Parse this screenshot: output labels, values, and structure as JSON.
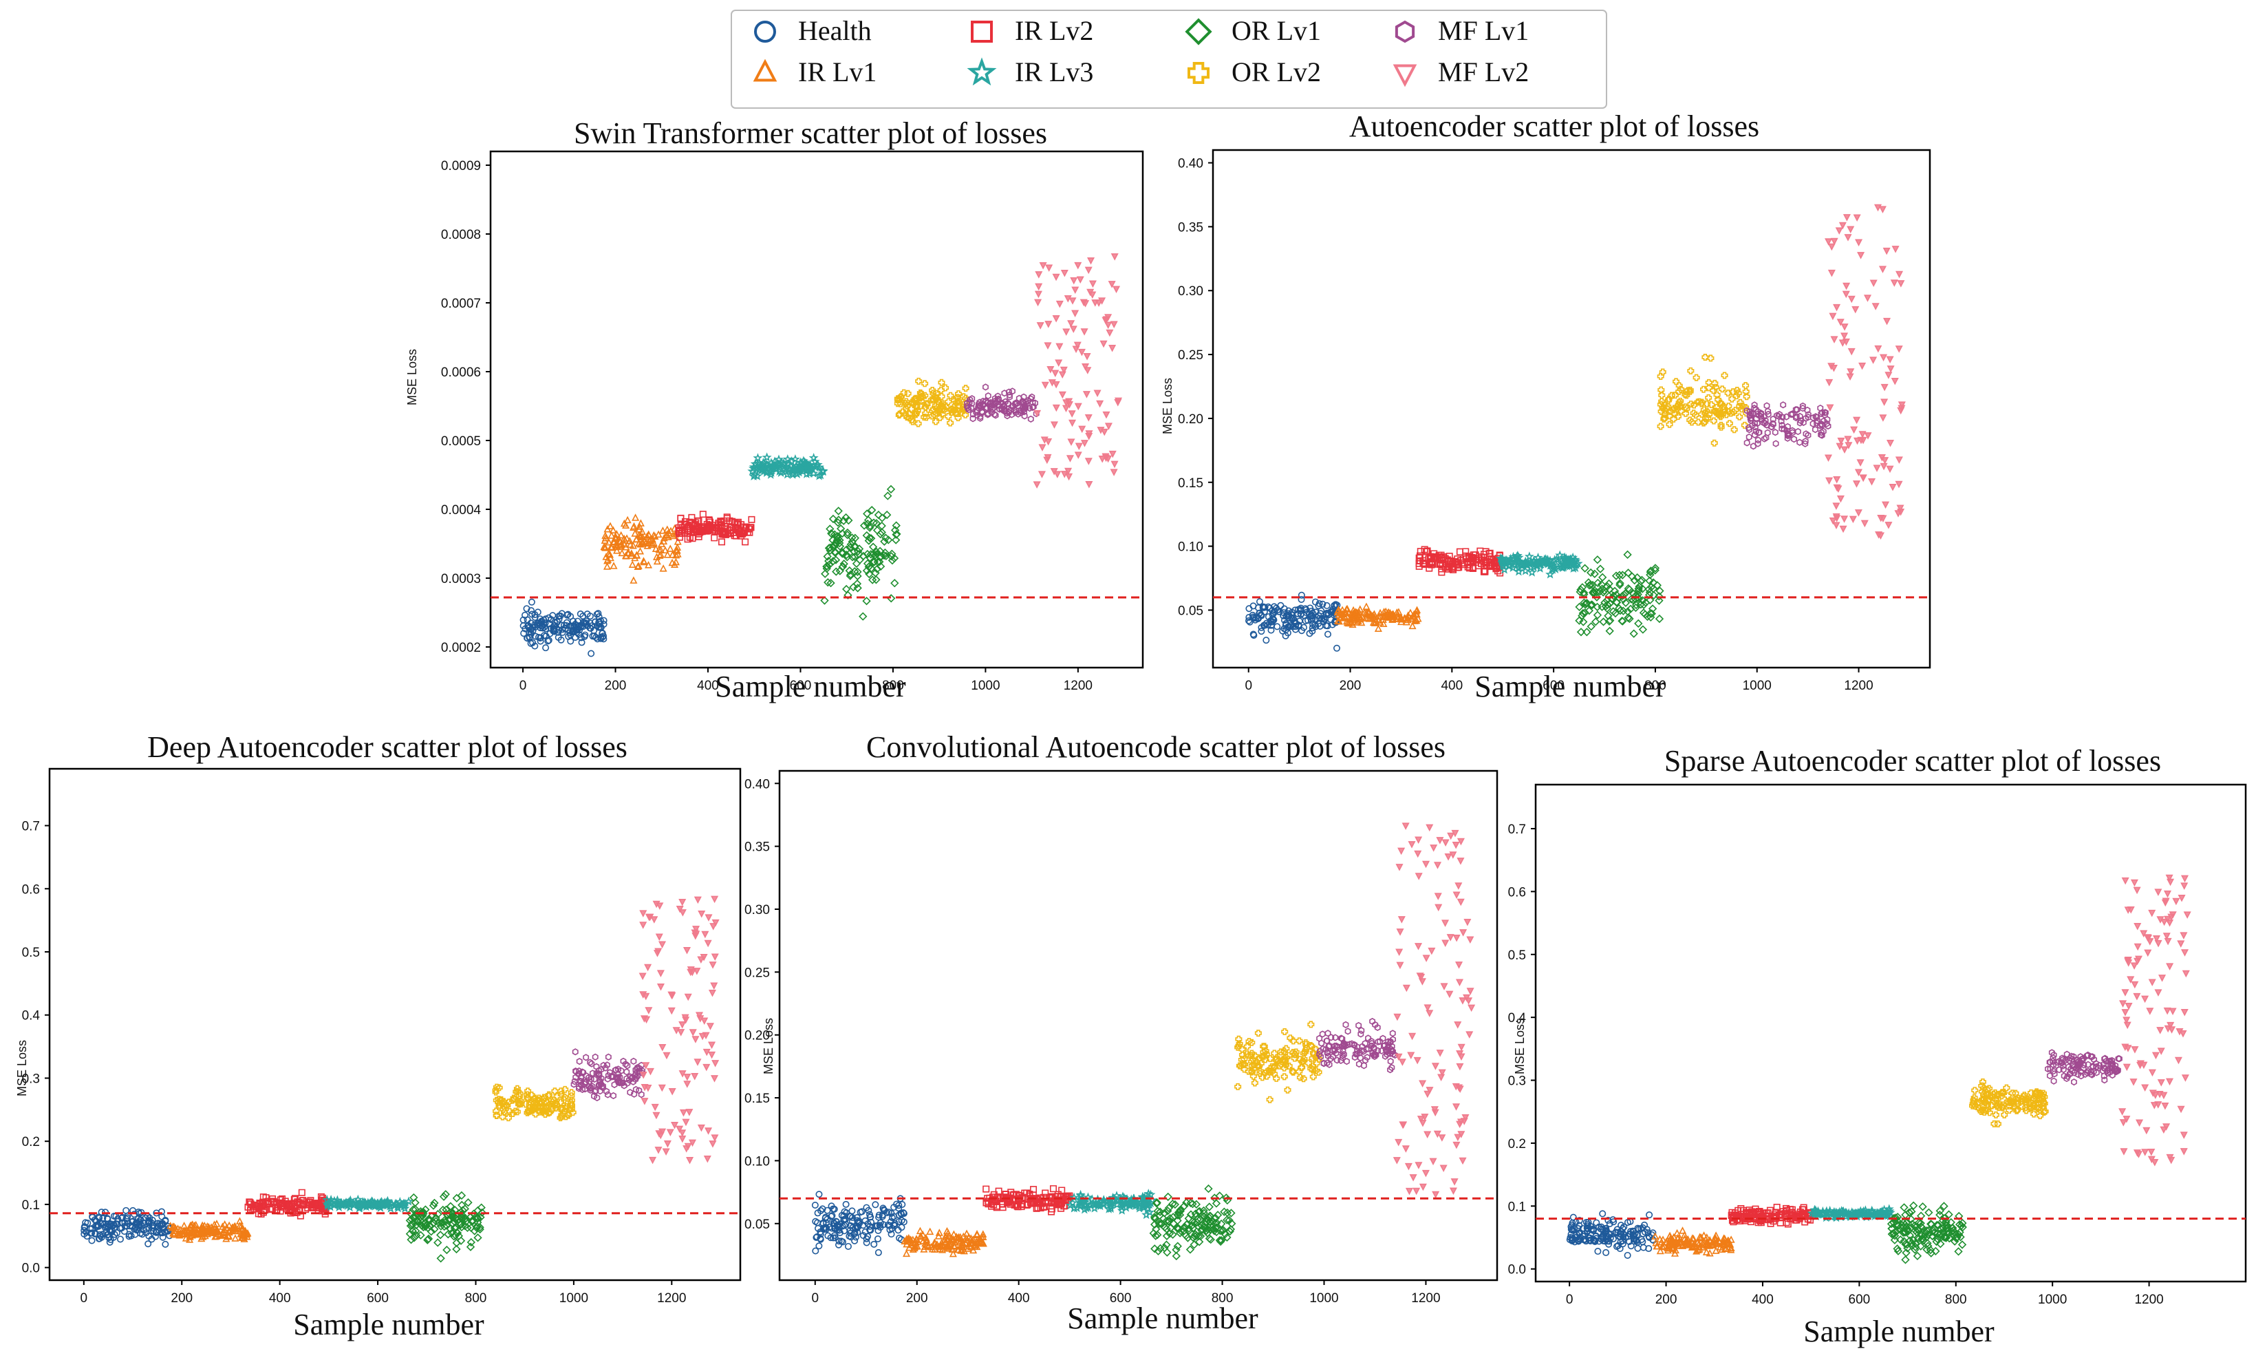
{
  "legend": [
    {
      "key": "health",
      "label": "Health",
      "marker": "circle",
      "color": "#1f5a9a"
    },
    {
      "key": "ir1",
      "label": "IR Lv1",
      "marker": "triangle-up",
      "color": "#f07d16"
    },
    {
      "key": "ir2",
      "label": "IR Lv2",
      "marker": "square",
      "color": "#e8303a"
    },
    {
      "key": "ir3",
      "label": "IR Lv3",
      "marker": "star",
      "color": "#2aa6a1"
    },
    {
      "key": "or1",
      "label": "OR Lv1",
      "marker": "diamond",
      "color": "#1f8f2f"
    },
    {
      "key": "or2",
      "label": "OR Lv2",
      "marker": "plus",
      "color": "#f0b814"
    },
    {
      "key": "mf1",
      "label": "MF Lv1",
      "marker": "hexagon",
      "color": "#a04a90"
    },
    {
      "key": "mf2",
      "label": "MF Lv2",
      "marker": "triangle-down",
      "color": "#f07a8c"
    }
  ],
  "threshold_color": "#e0201e",
  "chart_data": [
    {
      "type": "scatter",
      "title": "Swin Transformer scatter plot of losses",
      "xlabel": "Sample number",
      "ylabel": "MSE Loss",
      "xlim": [
        -70,
        1340
      ],
      "ylim": [
        0.00017,
        0.00092
      ],
      "xticks": [
        0,
        200,
        400,
        600,
        800,
        1000,
        1200
      ],
      "yticks": [
        0.0002,
        0.0003,
        0.0004,
        0.0005,
        0.0006,
        0.0007,
        0.0008,
        0.0009
      ],
      "ytick_labels": [
        "0.0002",
        "0.0003",
        "0.0004",
        "0.0005",
        "0.0006",
        "0.0007",
        "0.0008",
        "0.0009"
      ],
      "threshold": 0.000272,
      "series": [
        {
          "key": "health",
          "x_range": [
            0,
            175
          ],
          "y_center": 0.000229,
          "y_spread": 1.1e-05,
          "count": 170
        },
        {
          "key": "ir1",
          "x_range": [
            175,
            335
          ],
          "y_center": 0.00035,
          "y_spread": 1.6e-05,
          "count": 140
        },
        {
          "key": "ir2",
          "x_range": [
            335,
            495
          ],
          "y_center": 0.000372,
          "y_spread": 7e-06,
          "count": 140
        },
        {
          "key": "ir3",
          "x_range": [
            495,
            650
          ],
          "y_center": 0.00046,
          "y_spread": 6e-06,
          "count": 120
        },
        {
          "key": "or1",
          "x_range": [
            650,
            810
          ],
          "y_center": 0.00034,
          "y_spread": 3.3e-05,
          "count": 150
        },
        {
          "key": "or2",
          "x_range": [
            810,
            960
          ],
          "y_center": 0.000551,
          "y_spread": 1.2e-05,
          "count": 120
        },
        {
          "key": "mf1",
          "x_range": [
            960,
            1110
          ],
          "y_center": 0.000551,
          "y_spread": 9e-06,
          "count": 120
        },
        {
          "key": "mf2",
          "x_range": [
            1110,
            1290
          ],
          "y_center": 0.0006,
          "y_spread": 8e-05,
          "count": 110
        }
      ]
    },
    {
      "type": "scatter",
      "title": "Autoencoder scatter plot of losses",
      "xlabel": "Sample number",
      "ylabel": "MSE Loss",
      "xlim": [
        -70,
        1340
      ],
      "ylim": [
        0.005,
        0.41
      ],
      "xticks": [
        0,
        200,
        400,
        600,
        800,
        1000,
        1200
      ],
      "yticks": [
        0.05,
        0.1,
        0.15,
        0.2,
        0.25,
        0.3,
        0.35,
        0.4
      ],
      "ytick_labels": [
        "0.05",
        "0.10",
        "0.15",
        "0.20",
        "0.25",
        "0.30",
        "0.35",
        "0.40"
      ],
      "threshold": 0.06,
      "series": [
        {
          "key": "health",
          "x_range": [
            0,
            175
          ],
          "y_center": 0.045,
          "y_spread": 0.007,
          "count": 170
        },
        {
          "key": "ir1",
          "x_range": [
            175,
            335
          ],
          "y_center": 0.045,
          "y_spread": 0.003,
          "count": 140
        },
        {
          "key": "ir2",
          "x_range": [
            335,
            495
          ],
          "y_center": 0.088,
          "y_spread": 0.004,
          "count": 140
        },
        {
          "key": "ir3",
          "x_range": [
            495,
            650
          ],
          "y_center": 0.087,
          "y_spread": 0.003,
          "count": 120
        },
        {
          "key": "or1",
          "x_range": [
            650,
            810
          ],
          "y_center": 0.06,
          "y_spread": 0.013,
          "count": 150
        },
        {
          "key": "or2",
          "x_range": [
            810,
            980
          ],
          "y_center": 0.21,
          "y_spread": 0.01,
          "count": 130
        },
        {
          "key": "mf1",
          "x_range": [
            980,
            1140
          ],
          "y_center": 0.197,
          "y_spread": 0.008,
          "count": 120
        },
        {
          "key": "mf2",
          "x_range": [
            1140,
            1290
          ],
          "y_center": 0.23,
          "y_spread": 0.065,
          "count": 110
        }
      ]
    },
    {
      "type": "scatter",
      "title": "Deep Autoencoder scatter plot of losses",
      "xlabel": "Sample number",
      "ylabel": "MSE Loss",
      "xlim": [
        -70,
        1340
      ],
      "ylim": [
        -0.02,
        0.79
      ],
      "xticks": [
        0,
        200,
        400,
        600,
        800,
        1000,
        1200
      ],
      "yticks": [
        0.0,
        0.1,
        0.2,
        0.3,
        0.4,
        0.5,
        0.6,
        0.7
      ],
      "ytick_labels": [
        "0.0",
        "0.1",
        "0.2",
        "0.3",
        "0.4",
        "0.5",
        "0.6",
        "0.7"
      ],
      "threshold": 0.086,
      "series": [
        {
          "key": "health",
          "x_range": [
            0,
            175
          ],
          "y_center": 0.065,
          "y_spread": 0.012,
          "count": 170
        },
        {
          "key": "ir1",
          "x_range": [
            175,
            335
          ],
          "y_center": 0.057,
          "y_spread": 0.006,
          "count": 140
        },
        {
          "key": "ir2",
          "x_range": [
            335,
            495
          ],
          "y_center": 0.098,
          "y_spread": 0.006,
          "count": 140
        },
        {
          "key": "ir3",
          "x_range": [
            495,
            665
          ],
          "y_center": 0.1,
          "y_spread": 0.003,
          "count": 120
        },
        {
          "key": "or1",
          "x_range": [
            665,
            815
          ],
          "y_center": 0.075,
          "y_spread": 0.018,
          "count": 150
        },
        {
          "key": "or2",
          "x_range": [
            840,
            1000
          ],
          "y_center": 0.258,
          "y_spread": 0.012,
          "count": 130
        },
        {
          "key": "mf1",
          "x_range": [
            1000,
            1140
          ],
          "y_center": 0.3,
          "y_spread": 0.015,
          "count": 120
        },
        {
          "key": "mf2",
          "x_range": [
            1140,
            1290
          ],
          "y_center": 0.38,
          "y_spread": 0.1,
          "count": 110
        }
      ]
    },
    {
      "type": "scatter",
      "title": "Convolutional Autoencode scatter plot of losses",
      "xlabel": "Sample number",
      "ylabel": "MSE Loss",
      "xlim": [
        -70,
        1340
      ],
      "ylim": [
        0.005,
        0.41
      ],
      "xticks": [
        0,
        200,
        400,
        600,
        800,
        1000,
        1200
      ],
      "yticks": [
        0.05,
        0.1,
        0.15,
        0.2,
        0.25,
        0.3,
        0.35,
        0.4
      ],
      "ytick_labels": [
        "0.05",
        "0.10",
        "0.15",
        "0.20",
        "0.25",
        "0.30",
        "0.35",
        "0.40"
      ],
      "threshold": 0.07,
      "series": [
        {
          "key": "health",
          "x_range": [
            0,
            175
          ],
          "y_center": 0.05,
          "y_spread": 0.009,
          "count": 170
        },
        {
          "key": "ir1",
          "x_range": [
            175,
            335
          ],
          "y_center": 0.035,
          "y_spread": 0.004,
          "count": 140
        },
        {
          "key": "ir2",
          "x_range": [
            335,
            500
          ],
          "y_center": 0.069,
          "y_spread": 0.004,
          "count": 140
        },
        {
          "key": "ir3",
          "x_range": [
            500,
            665
          ],
          "y_center": 0.066,
          "y_spread": 0.003,
          "count": 120
        },
        {
          "key": "or1",
          "x_range": [
            665,
            820
          ],
          "y_center": 0.05,
          "y_spread": 0.011,
          "count": 150
        },
        {
          "key": "or2",
          "x_range": [
            830,
            990
          ],
          "y_center": 0.18,
          "y_spread": 0.01,
          "count": 130
        },
        {
          "key": "mf1",
          "x_range": [
            990,
            1140
          ],
          "y_center": 0.188,
          "y_spread": 0.008,
          "count": 120
        },
        {
          "key": "mf2",
          "x_range": [
            1140,
            1290
          ],
          "y_center": 0.22,
          "y_spread": 0.07,
          "count": 110
        }
      ]
    },
    {
      "type": "scatter",
      "title": "Sparse Autoencoder scatter plot of losses",
      "xlabel": "Sample number",
      "ylabel": "MSE Loss",
      "xlim": [
        -70,
        1400
      ],
      "ylim": [
        -0.02,
        0.77
      ],
      "xticks": [
        0,
        200,
        400,
        600,
        800,
        1000,
        1200
      ],
      "yticks": [
        0.0,
        0.1,
        0.2,
        0.3,
        0.4,
        0.5,
        0.6,
        0.7
      ],
      "ytick_labels": [
        "0.0",
        "0.1",
        "0.2",
        "0.3",
        "0.4",
        "0.5",
        "0.6",
        "0.7"
      ],
      "threshold": 0.08,
      "series": [
        {
          "key": "health",
          "x_range": [
            0,
            175
          ],
          "y_center": 0.055,
          "y_spread": 0.01,
          "count": 170
        },
        {
          "key": "ir1",
          "x_range": [
            175,
            335
          ],
          "y_center": 0.04,
          "y_spread": 0.006,
          "count": 140
        },
        {
          "key": "ir2",
          "x_range": [
            335,
            500
          ],
          "y_center": 0.085,
          "y_spread": 0.006,
          "count": 140
        },
        {
          "key": "ir3",
          "x_range": [
            500,
            665
          ],
          "y_center": 0.088,
          "y_spread": 0.003,
          "count": 120
        },
        {
          "key": "or1",
          "x_range": [
            665,
            815
          ],
          "y_center": 0.06,
          "y_spread": 0.016,
          "count": 150
        },
        {
          "key": "or2",
          "x_range": [
            830,
            990
          ],
          "y_center": 0.267,
          "y_spread": 0.012,
          "count": 130
        },
        {
          "key": "mf1",
          "x_range": [
            990,
            1140
          ],
          "y_center": 0.322,
          "y_spread": 0.01,
          "count": 120
        },
        {
          "key": "mf2",
          "x_range": [
            1140,
            1280
          ],
          "y_center": 0.4,
          "y_spread": 0.11,
          "count": 110
        }
      ]
    }
  ]
}
